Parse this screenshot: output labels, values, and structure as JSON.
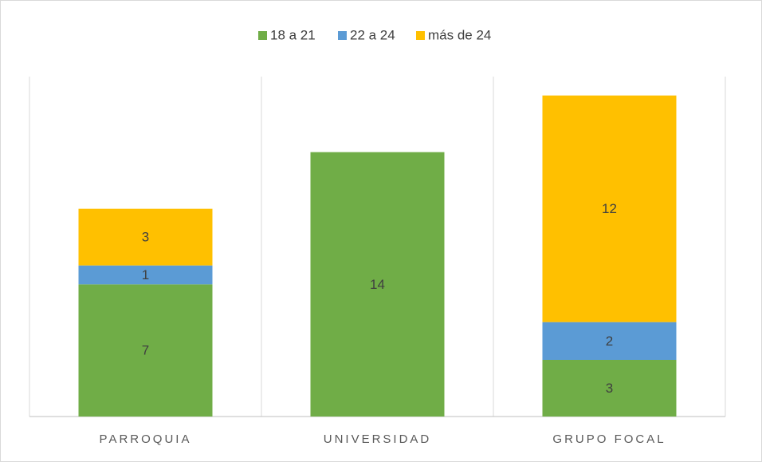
{
  "chart_data": {
    "type": "bar",
    "stacked": true,
    "categories": [
      "PARROQUIA",
      "UNIVERSIDAD",
      "GRUPO FOCAL"
    ],
    "series": [
      {
        "name": "18 a 21",
        "color": "#70ad47",
        "values": [
          7,
          14,
          3
        ]
      },
      {
        "name": "22 a 24",
        "color": "#5b9bd5",
        "values": [
          1,
          null,
          2
        ]
      },
      {
        "name": "más de 24",
        "color": "#ffc000",
        "values": [
          3,
          null,
          12
        ]
      }
    ],
    "ylim": [
      0,
      18
    ],
    "legend": "top"
  }
}
